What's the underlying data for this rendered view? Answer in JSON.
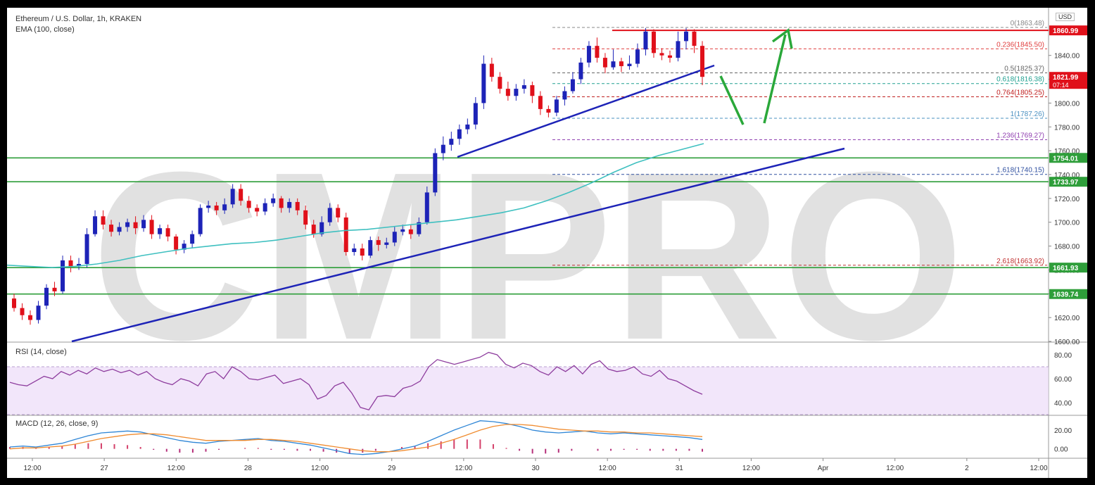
{
  "header": {
    "symbol_line": "Ethereum / U.S. Dollar, 1h, KRAKEN",
    "ema_line": "EMA (100, close)",
    "currency": "USD"
  },
  "colors": {
    "up_candle": "#1d23b7",
    "down_candle": "#e0101a",
    "trendline": "#1d23b7",
    "support": "#2e9e3a",
    "resistance": "#e0101a",
    "ema": "#3fc0c0",
    "arrow": "#2aa83a",
    "watermark": "#d8d8d8"
  },
  "watermark": "CMPRO",
  "chart_data": [
    {
      "type": "candlestick",
      "title": "Ethereum / U.S. Dollar, 1h, KRAKEN",
      "ylim": [
        1600,
        1880
      ],
      "y_ticks": [
        1600,
        1620,
        1640,
        1660,
        1680,
        1700,
        1720,
        1740,
        1760,
        1780,
        1800,
        1820,
        1840
      ],
      "x_ticks": [
        "12:00",
        "27",
        "12:00",
        "28",
        "12:00",
        "29",
        "12:00",
        "30",
        "12:00",
        "31",
        "12:00",
        "Apr",
        "12:00",
        "2",
        "12:00"
      ],
      "candles": [
        [
          1636,
          1628,
          1640,
          1625
        ],
        [
          1628,
          1622,
          1632,
          1618
        ],
        [
          1622,
          1618,
          1626,
          1614
        ],
        [
          1618,
          1630,
          1634,
          1615
        ],
        [
          1630,
          1645,
          1648,
          1627
        ],
        [
          1645,
          1642,
          1650,
          1638
        ],
        [
          1642,
          1668,
          1672,
          1640
        ],
        [
          1668,
          1663,
          1672,
          1658
        ],
        [
          1663,
          1665,
          1670,
          1660
        ],
        [
          1665,
          1690,
          1695,
          1662
        ],
        [
          1690,
          1705,
          1710,
          1688
        ],
        [
          1705,
          1698,
          1710,
          1694
        ],
        [
          1698,
          1692,
          1702,
          1688
        ],
        [
          1692,
          1696,
          1700,
          1689
        ],
        [
          1696,
          1700,
          1703,
          1692
        ],
        [
          1700,
          1695,
          1705,
          1690
        ],
        [
          1695,
          1702,
          1706,
          1692
        ],
        [
          1702,
          1690,
          1706,
          1686
        ],
        [
          1690,
          1695,
          1698,
          1686
        ],
        [
          1695,
          1688,
          1698,
          1684
        ],
        [
          1688,
          1677,
          1690,
          1673
        ],
        [
          1677,
          1682,
          1685,
          1674
        ],
        [
          1682,
          1690,
          1693,
          1678
        ],
        [
          1690,
          1712,
          1715,
          1688
        ],
        [
          1712,
          1714,
          1718,
          1708
        ],
        [
          1714,
          1710,
          1717,
          1706
        ],
        [
          1710,
          1715,
          1720,
          1707
        ],
        [
          1715,
          1728,
          1732,
          1712
        ],
        [
          1728,
          1718,
          1732,
          1714
        ],
        [
          1718,
          1712,
          1722,
          1708
        ],
        [
          1712,
          1709,
          1715,
          1705
        ],
        [
          1709,
          1716,
          1720,
          1706
        ],
        [
          1716,
          1720,
          1724,
          1713
        ],
        [
          1720,
          1712,
          1722,
          1708
        ],
        [
          1712,
          1717,
          1720,
          1708
        ],
        [
          1717,
          1710,
          1720,
          1706
        ],
        [
          1710,
          1698,
          1714,
          1694
        ],
        [
          1698,
          1690,
          1702,
          1687
        ],
        [
          1690,
          1700,
          1705,
          1688
        ],
        [
          1700,
          1712,
          1716,
          1697
        ],
        [
          1712,
          1704,
          1715,
          1700
        ],
        [
          1704,
          1675,
          1708,
          1672
        ],
        [
          1675,
          1678,
          1682,
          1672
        ],
        [
          1678,
          1672,
          1682,
          1668
        ],
        [
          1672,
          1685,
          1688,
          1670
        ],
        [
          1685,
          1681,
          1688,
          1676
        ],
        [
          1681,
          1683,
          1687,
          1678
        ],
        [
          1683,
          1692,
          1696,
          1680
        ],
        [
          1692,
          1694,
          1698,
          1689
        ],
        [
          1694,
          1690,
          1698,
          1686
        ],
        [
          1690,
          1700,
          1704,
          1688
        ],
        [
          1700,
          1725,
          1730,
          1698
        ],
        [
          1725,
          1758,
          1762,
          1722
        ],
        [
          1758,
          1765,
          1772,
          1752
        ],
        [
          1765,
          1770,
          1776,
          1760
        ],
        [
          1770,
          1778,
          1782,
          1765
        ],
        [
          1778,
          1782,
          1787,
          1774
        ],
        [
          1782,
          1800,
          1805,
          1778
        ],
        [
          1800,
          1833,
          1840,
          1795
        ],
        [
          1833,
          1822,
          1838,
          1818
        ],
        [
          1822,
          1812,
          1826,
          1808
        ],
        [
          1812,
          1806,
          1818,
          1802
        ],
        [
          1806,
          1812,
          1816,
          1802
        ],
        [
          1812,
          1815,
          1820,
          1808
        ],
        [
          1815,
          1806,
          1818,
          1800
        ],
        [
          1806,
          1795,
          1810,
          1790
        ],
        [
          1795,
          1792,
          1798,
          1788
        ],
        [
          1792,
          1803,
          1806,
          1789
        ],
        [
          1803,
          1810,
          1814,
          1798
        ],
        [
          1810,
          1820,
          1826,
          1808
        ],
        [
          1820,
          1834,
          1838,
          1816
        ],
        [
          1834,
          1848,
          1852,
          1830
        ],
        [
          1848,
          1838,
          1855,
          1834
        ],
        [
          1838,
          1830,
          1842,
          1825
        ],
        [
          1830,
          1835,
          1845,
          1828
        ],
        [
          1835,
          1831,
          1838,
          1826
        ],
        [
          1831,
          1833,
          1840,
          1828
        ],
        [
          1833,
          1845,
          1850,
          1830
        ],
        [
          1845,
          1860,
          1863,
          1840
        ],
        [
          1860,
          1842,
          1862,
          1838
        ],
        [
          1842,
          1840,
          1846,
          1836
        ],
        [
          1840,
          1838,
          1844,
          1834
        ],
        [
          1838,
          1852,
          1860,
          1835
        ],
        [
          1852,
          1860,
          1863,
          1845
        ],
        [
          1860,
          1848,
          1862,
          1842
        ],
        [
          1848,
          1822,
          1852,
          1815
        ]
      ],
      "ema_100": [
        1664,
        1663,
        1662,
        1663,
        1665,
        1668,
        1672,
        1675,
        1678,
        1680,
        1682,
        1683,
        1685,
        1688,
        1691,
        1693,
        1694,
        1696,
        1698,
        1700,
        1702,
        1705,
        1708,
        1712,
        1718,
        1725,
        1733,
        1742,
        1750,
        1756,
        1761,
        1766
      ],
      "support_levels": [
        1754.01,
        1733.97,
        1661.93,
        1639.74
      ],
      "resistance_level": 1860.99,
      "current_price": 1821.99,
      "countdown": "07:14",
      "fib_levels": [
        {
          "ratio": "0",
          "value": 1863.48,
          "color": "#888888"
        },
        {
          "ratio": "0.236",
          "value": 1845.5,
          "color": "#e04040"
        },
        {
          "ratio": "0.5",
          "value": 1825.37,
          "color": "#666666"
        },
        {
          "ratio": "0.618",
          "value": 1816.38,
          "color": "#20a090"
        },
        {
          "ratio": "0.764",
          "value": 1805.25,
          "color": "#c02020"
        },
        {
          "ratio": "1",
          "value": 1787.26,
          "color": "#4a90c0"
        },
        {
          "ratio": "1.236",
          "value": 1769.27,
          "color": "#9040b0"
        },
        {
          "ratio": "1.618",
          "value": 1740.15,
          "color": "#3050a0"
        },
        {
          "ratio": "2.618",
          "value": 1663.92,
          "color": "#c03030"
        }
      ]
    },
    {
      "type": "line",
      "title": "RSI (14, close)",
      "ylim": [
        30,
        90
      ],
      "y_ticks": [
        40,
        60,
        80
      ],
      "band": [
        30,
        70
      ],
      "values": [
        57,
        55,
        54,
        58,
        62,
        60,
        66,
        63,
        67,
        64,
        69,
        66,
        68,
        65,
        67,
        63,
        66,
        60,
        57,
        55,
        60,
        58,
        54,
        64,
        66,
        60,
        70,
        66,
        60,
        59,
        61,
        63,
        56,
        58,
        60,
        55,
        43,
        46,
        54,
        57,
        48,
        36,
        34,
        45,
        46,
        45,
        52,
        54,
        58,
        70,
        76,
        74,
        72,
        74,
        76,
        78,
        82,
        80,
        72,
        69,
        73,
        71,
        66,
        63,
        70,
        66,
        71,
        64,
        72,
        75,
        68,
        66,
        67,
        70,
        64,
        62,
        67,
        60,
        58,
        54,
        50,
        47
      ]
    },
    {
      "type": "line",
      "title": "MACD (12, 26, close, 9)",
      "ylim": [
        -10,
        35
      ],
      "y_ticks": [
        0,
        20
      ],
      "macd": [
        2,
        3,
        2,
        4,
        6,
        10,
        14,
        17,
        18,
        19,
        18,
        15,
        12,
        9,
        7,
        6,
        8,
        9,
        10,
        11,
        9,
        8,
        6,
        4,
        1,
        -2,
        -5,
        -6,
        -5,
        -3,
        0,
        3,
        8,
        14,
        20,
        25,
        30,
        29,
        27,
        24,
        20,
        18,
        17,
        18,
        19,
        17,
        16,
        17,
        16,
        15,
        14,
        13,
        12,
        10
      ],
      "signal": [
        0,
        1,
        1,
        2,
        3,
        5,
        8,
        11,
        13,
        15,
        16,
        16,
        15,
        13,
        11,
        9,
        9,
        9,
        9,
        10,
        10,
        9,
        8,
        6,
        4,
        2,
        0,
        -2,
        -3,
        -3,
        -2,
        0,
        2,
        6,
        10,
        15,
        20,
        24,
        26,
        26,
        25,
        23,
        21,
        20,
        19,
        19,
        18,
        18,
        17,
        17,
        16,
        15,
        14,
        13
      ],
      "histogram": [
        2,
        2,
        1,
        2,
        3,
        5,
        6,
        6,
        5,
        4,
        2,
        -1,
        -3,
        -4,
        -4,
        -3,
        -1,
        0,
        1,
        1,
        -1,
        -1,
        -2,
        -2,
        -3,
        -4,
        -5,
        -4,
        -2,
        0,
        2,
        3,
        6,
        8,
        10,
        10,
        10,
        5,
        1,
        -2,
        -5,
        -5,
        -4,
        -2,
        0,
        -2,
        -2,
        -1,
        -1,
        -2,
        -2,
        -2,
        -2,
        -3
      ]
    }
  ]
}
